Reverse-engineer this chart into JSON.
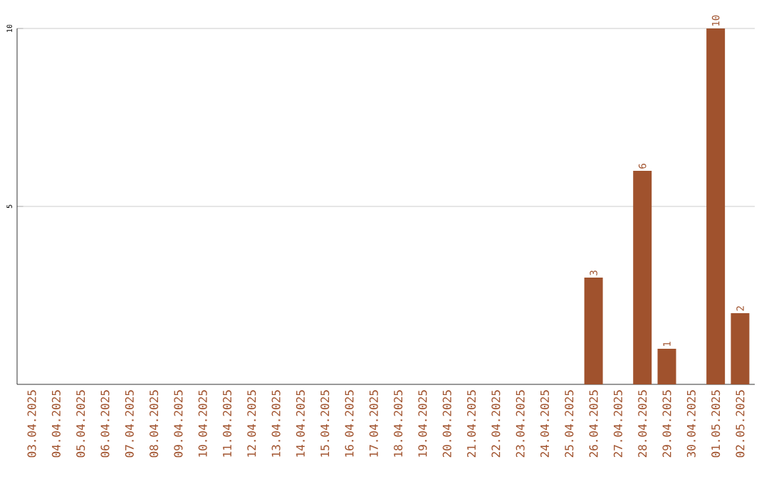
{
  "chart_data": {
    "type": "bar",
    "categories": [
      "03.04.2025",
      "04.04.2025",
      "05.04.2025",
      "06.04.2025",
      "07.04.2025",
      "08.04.2025",
      "09.04.2025",
      "10.04.2025",
      "11.04.2025",
      "12.04.2025",
      "13.04.2025",
      "14.04.2025",
      "15.04.2025",
      "16.04.2025",
      "17.04.2025",
      "18.04.2025",
      "19.04.2025",
      "20.04.2025",
      "21.04.2025",
      "22.04.2025",
      "23.04.2025",
      "24.04.2025",
      "25.04.2025",
      "26.04.2025",
      "27.04.2025",
      "28.04.2025",
      "29.04.2025",
      "30.04.2025",
      "01.05.2025",
      "02.05.2025"
    ],
    "values": [
      0,
      0,
      0,
      0,
      0,
      0,
      0,
      0,
      0,
      0,
      0,
      0,
      0,
      0,
      0,
      0,
      0,
      0,
      0,
      0,
      0,
      0,
      0,
      3,
      0,
      6,
      1,
      0,
      10,
      2
    ],
    "value_labels": [
      null,
      null,
      null,
      null,
      null,
      null,
      null,
      null,
      null,
      null,
      null,
      null,
      null,
      null,
      null,
      null,
      null,
      null,
      null,
      null,
      null,
      null,
      null,
      "3",
      null,
      "6",
      "1",
      null,
      "10",
      "2"
    ],
    "color": "#a0522d",
    "ylim": [
      0,
      10
    ],
    "yticks": [
      5,
      10
    ],
    "grid": "y"
  }
}
